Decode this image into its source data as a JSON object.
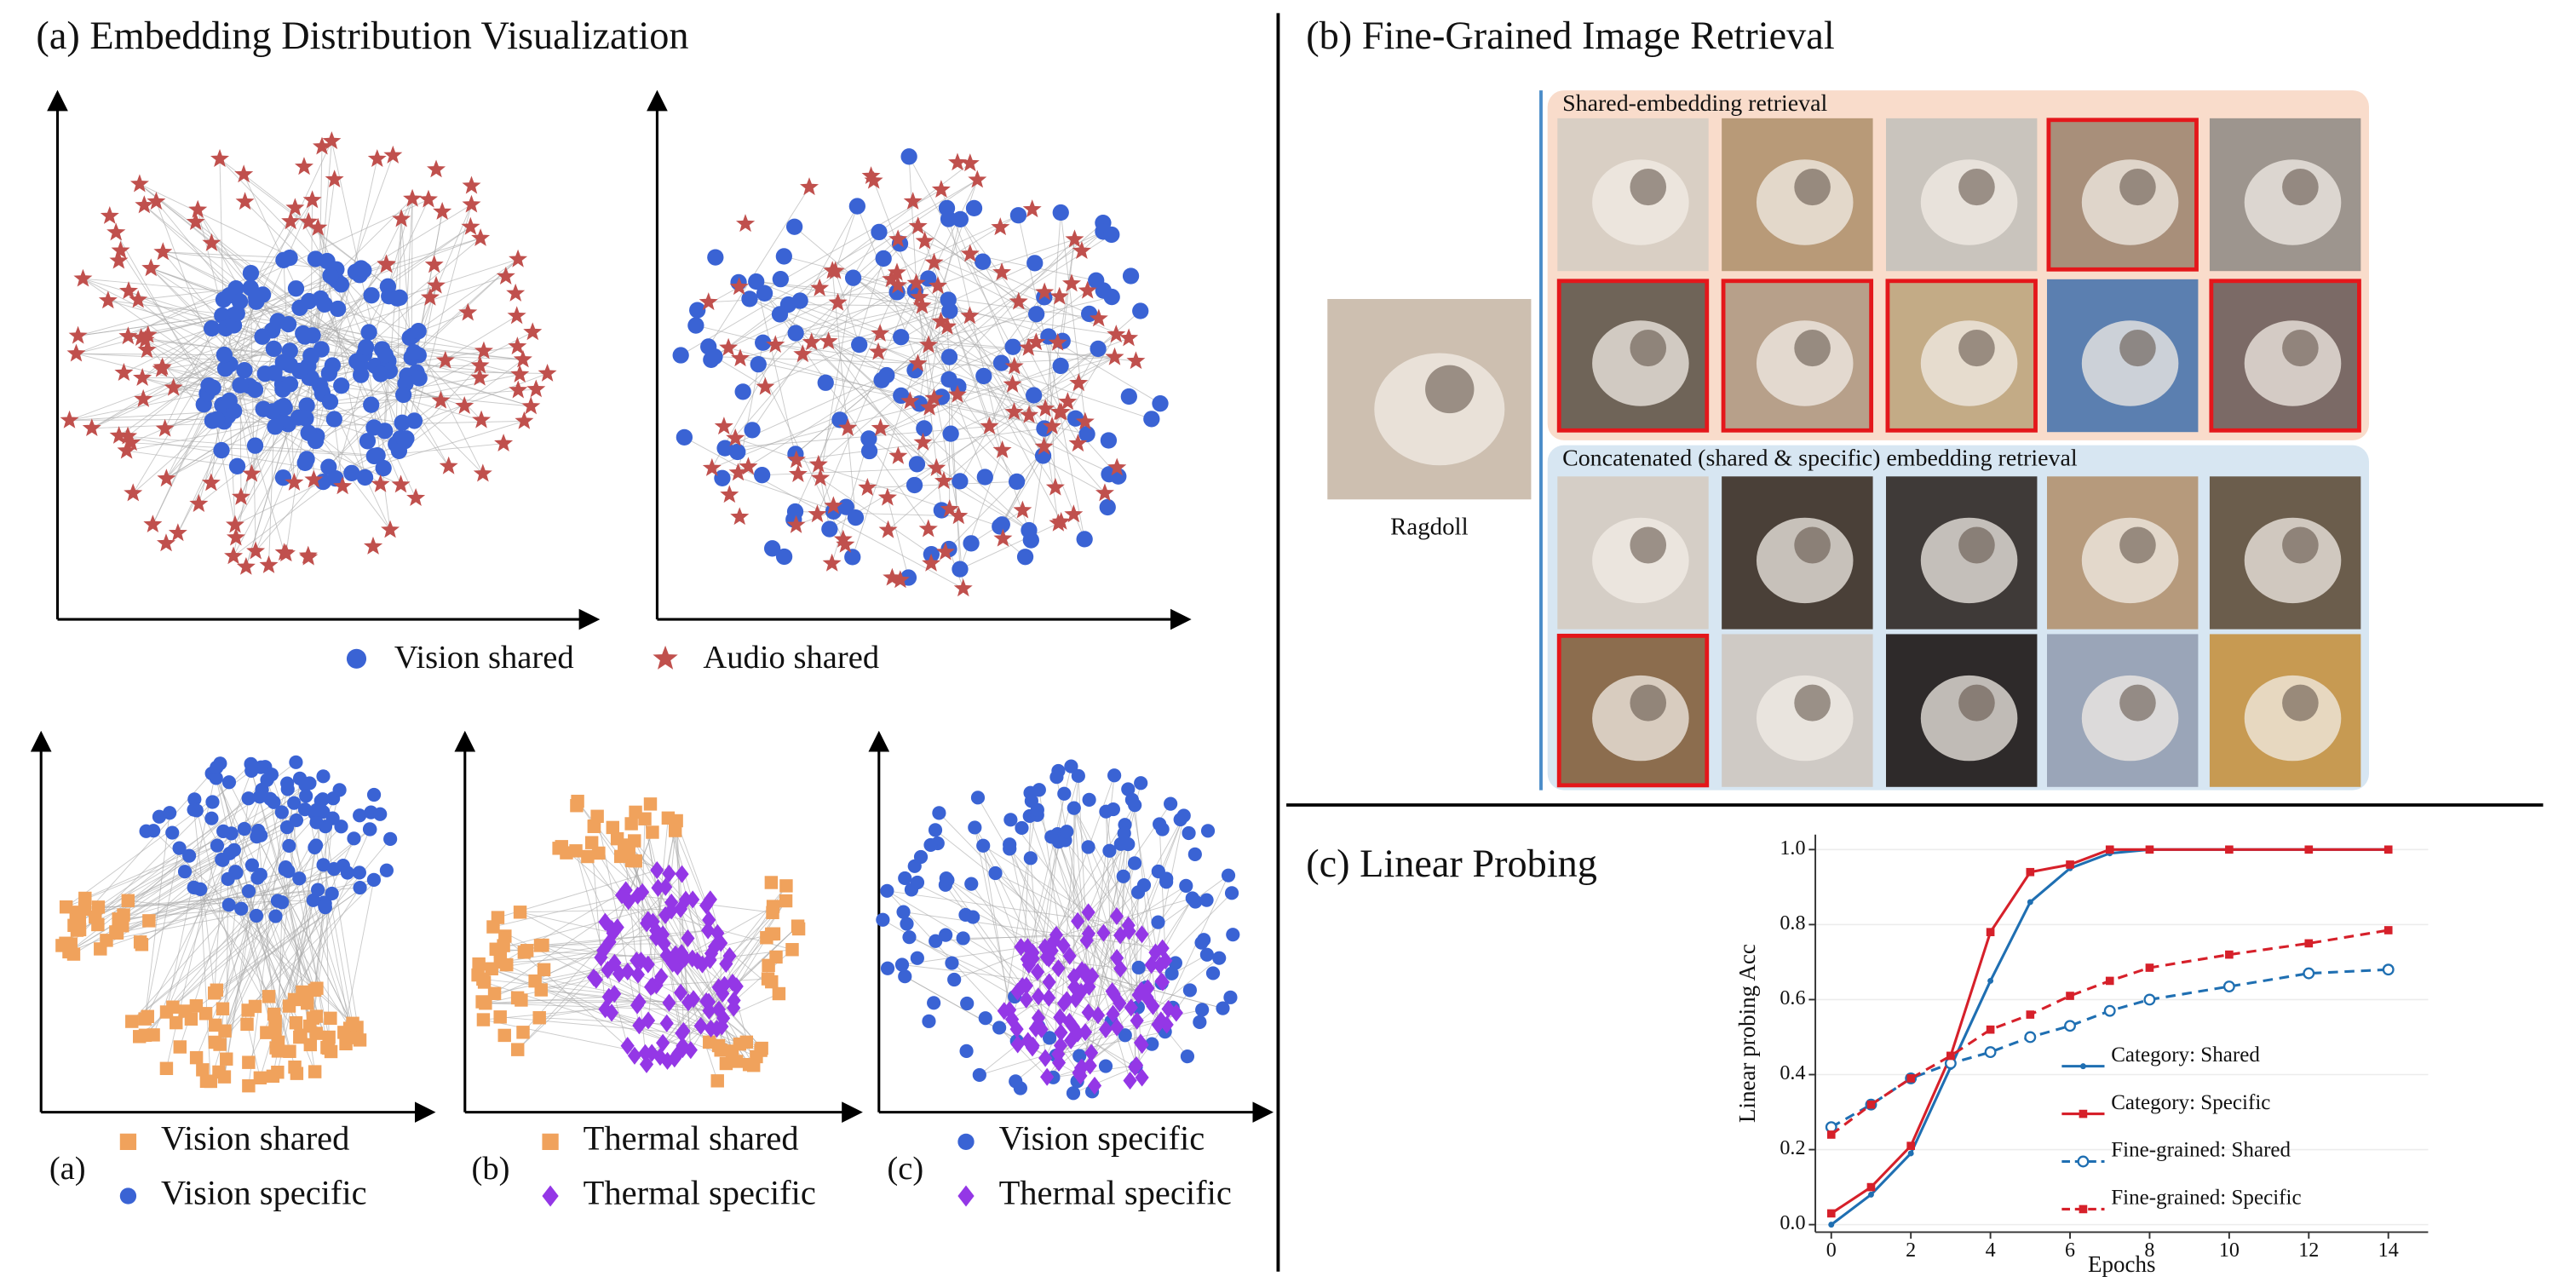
{
  "panel_a": {
    "title": "(a) Embedding Distribution Visualization",
    "legend": [
      "Vision shared",
      "Audio shared"
    ],
    "subplots": [
      {
        "label": "(a)",
        "legend": [
          "Vision shared",
          "Vision specific"
        ]
      },
      {
        "label": "(b)",
        "legend": [
          "Thermal shared",
          "Thermal specific"
        ]
      },
      {
        "label": "(c)",
        "legend": [
          "Vision specific",
          "Thermal specific"
        ]
      }
    ]
  },
  "panel_b": {
    "title": "(b) Fine-Grained Image Retrieval",
    "query_label": "Ragdoll",
    "groups": [
      {
        "title": "Shared-embedding retrieval"
      },
      {
        "title": "Concatenated (shared & specific) embedding retrieval"
      }
    ]
  },
  "chart_data": {
    "type": "line",
    "title": "(c) Linear Probing",
    "x_label": "Epochs",
    "y_label": "Linear probing Acc",
    "x": [
      0,
      1,
      2,
      3,
      4,
      5,
      6,
      7,
      8,
      10,
      12,
      14
    ],
    "series": [
      {
        "name": "Category: Shared",
        "color": "#1f6fb2",
        "linestyle": "solid",
        "marker": "dot",
        "values": [
          0.0,
          0.08,
          0.19,
          0.42,
          0.65,
          0.86,
          0.95,
          0.99,
          1.0,
          1.0,
          1.0,
          1.0
        ]
      },
      {
        "name": "Category: Specific",
        "color": "#d6202a",
        "linestyle": "solid",
        "marker": "square",
        "values": [
          0.03,
          0.1,
          0.21,
          0.45,
          0.78,
          0.94,
          0.96,
          1.0,
          1.0,
          1.0,
          1.0,
          1.0
        ]
      },
      {
        "name": "Fine-grained: Shared",
        "color": "#1f6fb2",
        "linestyle": "dashed",
        "marker": "circle",
        "values": [
          0.26,
          0.32,
          0.39,
          0.43,
          0.46,
          0.5,
          0.53,
          0.57,
          0.6,
          0.635,
          0.67,
          0.68
        ]
      },
      {
        "name": "Fine-grained: Specific",
        "color": "#d6202a",
        "linestyle": "dashed",
        "marker": "square",
        "values": [
          0.24,
          0.32,
          0.39,
          0.45,
          0.52,
          0.56,
          0.61,
          0.65,
          0.685,
          0.72,
          0.75,
          0.785
        ]
      }
    ],
    "xlim": [
      -0.4,
      15
    ],
    "ylim": [
      -0.02,
      1.04
    ],
    "xticks": [
      0,
      2,
      4,
      6,
      8,
      10,
      12,
      14
    ],
    "yticks": [
      {
        "value": 0,
        "label": "0.0"
      },
      0.2,
      0.4,
      0.6,
      0.8,
      {
        "value": 1,
        "label": "1.0"
      }
    ],
    "grid": true,
    "legend_position": "center right"
  }
}
